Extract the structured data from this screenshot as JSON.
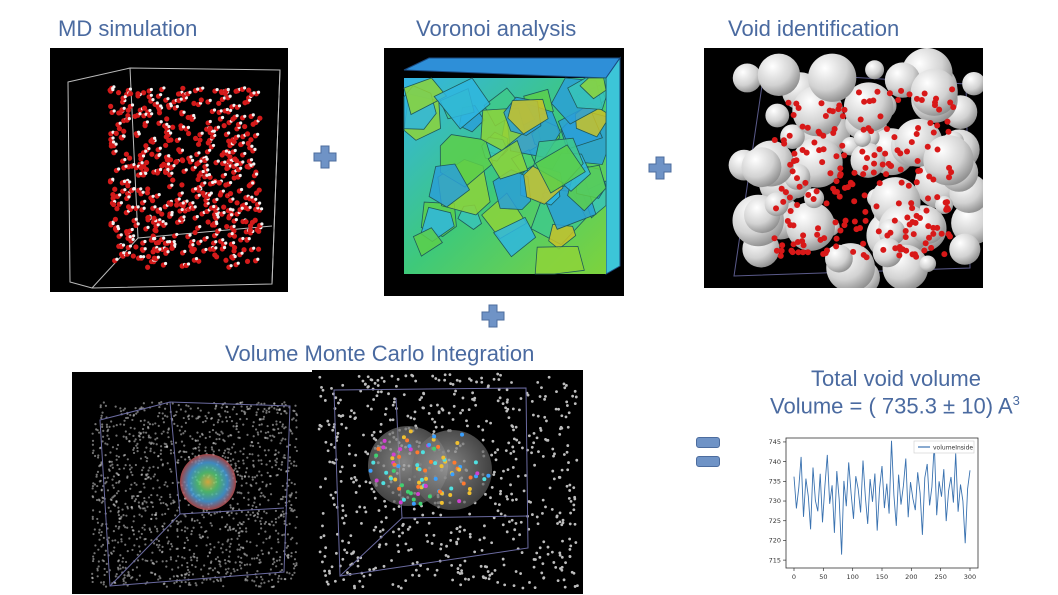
{
  "steps": {
    "md_simulation": "MD simulation",
    "voronoi_analysis": "Voronoi analysis",
    "void_identification": "Void identification",
    "monte_carlo": "Volume Monte Carlo Integration"
  },
  "result": {
    "title": "Total void volume",
    "volume_prefix": "Volume = ( 735.3 ± 10) A",
    "volume_superscript": "3"
  },
  "colors": {
    "title_text": "#4a6aa0",
    "operator_fill": "#6f93c6",
    "series_line": "#3a72b0"
  },
  "chart_data": {
    "type": "line",
    "legend": [
      "volumeInside"
    ],
    "legend_position": "top-right",
    "xlim": [
      0,
      300
    ],
    "ylim": [
      713,
      746
    ],
    "xticks": [
      "0",
      "50",
      "100",
      "150",
      "200",
      "250",
      "300"
    ],
    "yticks": [
      "715",
      "720",
      "725",
      "730",
      "735",
      "740",
      "745"
    ],
    "series": [
      {
        "name": "volumeInside",
        "values": [
          736.2,
          728.1,
          733.4,
          741.2,
          726.0,
          735.7,
          731.2,
          722.8,
          738.5,
          730.1,
          727.4,
          736.9,
          724.6,
          733.8,
          741.7,
          729.3,
          734.0,
          721.9,
          737.6,
          730.4,
          716.4,
          735.1,
          728.7,
          739.8,
          731.9,
          725.5,
          736.3,
          733.0,
          727.1,
          740.3,
          730.9,
          724.2,
          735.6,
          729.8,
          737.0,
          722.5,
          733.3,
          738.9,
          728.2,
          734.4,
          726.8,
          745.3,
          731.5,
          723.7,
          736.7,
          729.1,
          733.9,
          740.8,
          725.9,
          734.8,
          730.6,
          727.7,
          737.3,
          732.0,
          721.4,
          735.9,
          739.4,
          728.9,
          733.6,
          744.6,
          726.4,
          735.0,
          731.1,
          738.1,
          724.9,
          732.6,
          736.1,
          729.6,
          742.1,
          727.3,
          734.2,
          730.0,
          719.3,
          733.1,
          737.8
        ]
      }
    ]
  }
}
